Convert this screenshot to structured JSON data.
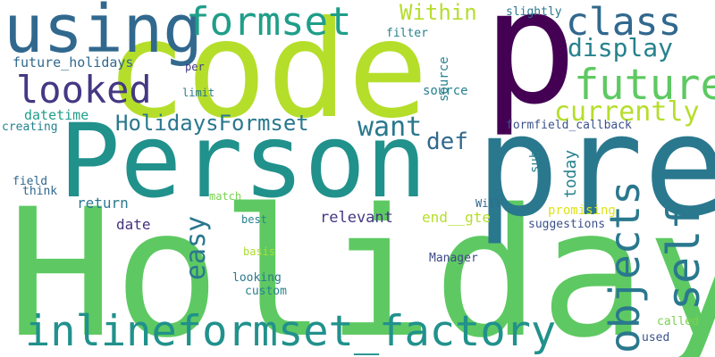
{
  "words": {
    "holiday": {
      "text": "Holiday",
      "color": "#5ec962"
    },
    "person": {
      "text": "Person",
      "color": "#21918c"
    },
    "code": {
      "text": "code",
      "color": "#b5de2b"
    },
    "p": {
      "text": "p",
      "color": "#440154"
    },
    "pre": {
      "text": "pre",
      "color": "#2a788e"
    },
    "using": {
      "text": "using",
      "color": "#31688e"
    },
    "formset": {
      "text": "formset",
      "color": "#1f9e89"
    },
    "class": {
      "text": "class",
      "color": "#31688e"
    },
    "future": {
      "text": "future",
      "color": "#5ec962"
    },
    "display": {
      "text": "display",
      "color": "#26828e"
    },
    "currently": {
      "text": "currently",
      "color": "#b5de2b"
    },
    "looked": {
      "text": "looked",
      "color": "#443983"
    },
    "within": {
      "text": "Within",
      "color": "#b5de2b"
    },
    "holidays_formset": {
      "text": "HolidaysFormset",
      "color": "#2a788e"
    },
    "want": {
      "text": "want",
      "color": "#2a788e"
    },
    "def": {
      "text": "def",
      "color": "#31688e"
    },
    "inlineformset_factory": {
      "text": "inlineformset_factory",
      "color": "#21918c"
    },
    "objects": {
      "text": "objects",
      "color": "#2a788e"
    },
    "self": {
      "text": "self",
      "color": "#2a788e"
    },
    "easy": {
      "text": "easy",
      "color": "#2a788e"
    },
    "future_holidays": {
      "text": "future_holidays",
      "color": "#31688e"
    },
    "datetime": {
      "text": "datetime",
      "color": "#1f9e89"
    },
    "creating": {
      "text": "creating",
      "color": "#26828e"
    },
    "field": {
      "text": "field",
      "color": "#31688e"
    },
    "think": {
      "text": "think",
      "color": "#31688e"
    },
    "return": {
      "text": "return",
      "color": "#2a788e"
    },
    "date": {
      "text": "date",
      "color": "#46327e"
    },
    "relevant": {
      "text": "relevant",
      "color": "#443983"
    },
    "end_gte": {
      "text": "end__gte",
      "color": "#b5de2b"
    },
    "per": {
      "text": "per",
      "color": "#443983"
    },
    "limit": {
      "text": "limit",
      "color": "#2a788e"
    },
    "source": {
      "text": "source",
      "color": "#26828e"
    },
    "filter": {
      "text": "filter",
      "color": "#26828e"
    },
    "slightly": {
      "text": "slightly",
      "color": "#2a788e"
    },
    "formfield_callback": {
      "text": "formfield_callback",
      "color": "#3b528b"
    },
    "sub": {
      "text": "sub",
      "color": "#26828e"
    },
    "today": {
      "text": "today",
      "color": "#26828e"
    },
    "will": {
      "text": "Will",
      "color": "#31688e"
    },
    "promising": {
      "text": "promising",
      "color": "#dde318"
    },
    "suggestions": {
      "text": "suggestions",
      "color": "#3b528b"
    },
    "match": {
      "text": "match",
      "color": "#7ad151"
    },
    "best": {
      "text": "best",
      "color": "#26828e"
    },
    "basis": {
      "text": "basis",
      "color": "#addc30"
    },
    "looking": {
      "text": "looking",
      "color": "#2a788e"
    },
    "custom": {
      "text": "custom",
      "color": "#26828e"
    },
    "manager": {
      "text": "Manager",
      "color": "#3e4a89"
    },
    "called": {
      "text": "called",
      "color": "#7ad151"
    },
    "used": {
      "text": "used",
      "color": "#3b528b"
    }
  }
}
